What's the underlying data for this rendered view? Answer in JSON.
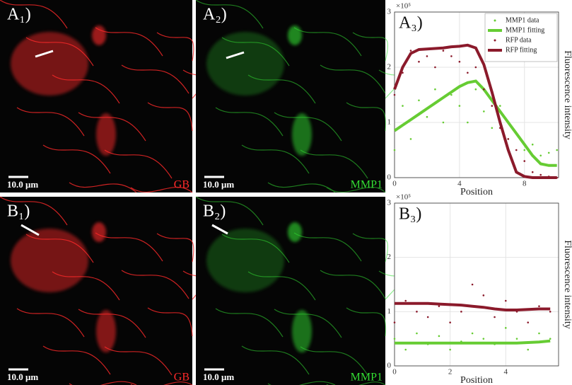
{
  "panels": [
    {
      "label": "A₁)",
      "scale_bar": "10.0 μm",
      "channel": "GB",
      "color": "#ff2a2a"
    },
    {
      "label": "A₂)",
      "scale_bar": "10.0 μm",
      "channel": "MMP1",
      "color": "#33dd33"
    },
    {
      "label": "B₁)",
      "scale_bar": "10.0 μm",
      "channel": "GB",
      "color": "#ff2a2a"
    },
    {
      "label": "B₂)",
      "scale_bar": "10.0 μm",
      "channel": "MMP1",
      "color": "#33dd33"
    }
  ],
  "chart_data": [
    {
      "type": "line",
      "title": "A₃)",
      "exponent": "×10⁵",
      "x_label": "Position",
      "y_label": "Fluorescence intensity",
      "xlim": [
        0,
        10.1
      ],
      "xticks": [
        0,
        4,
        8
      ],
      "ylim": [
        0,
        3
      ],
      "yticks": [
        0,
        1,
        2,
        3
      ],
      "grid": true,
      "legend": "upper right",
      "series": [
        {
          "name": "MMP1 data",
          "color": "#66cc33",
          "style": "markers",
          "x": [
            0,
            0.5,
            1,
            1.5,
            2,
            2.5,
            3,
            3.5,
            4,
            4.5,
            5,
            5.5,
            6,
            6.5,
            7,
            7.5,
            8,
            8.5,
            9,
            9.5,
            10
          ],
          "values": [
            0.5,
            1.3,
            0.7,
            1.4,
            1.1,
            1.6,
            1.0,
            1.5,
            1.3,
            1.0,
            1.6,
            1.2,
            0.9,
            1.3,
            0.7,
            0.8,
            0.5,
            0.6,
            0.4,
            0.45,
            0.5
          ]
        },
        {
          "name": "MMP1 fitting",
          "color": "#66cc33",
          "style": "line",
          "x": [
            0,
            0.5,
            1,
            1.5,
            2,
            2.5,
            3,
            3.5,
            4,
            4.5,
            5,
            5.5,
            6,
            6.5,
            7,
            7.5,
            8,
            8.5,
            9,
            9.5,
            10
          ],
          "values": [
            0.85,
            0.95,
            1.05,
            1.15,
            1.25,
            1.35,
            1.45,
            1.55,
            1.65,
            1.72,
            1.75,
            1.6,
            1.4,
            1.2,
            1.0,
            0.8,
            0.6,
            0.4,
            0.25,
            0.22,
            0.22
          ]
        },
        {
          "name": "RFP data",
          "color": "#8b1a2b",
          "style": "markers",
          "x": [
            0,
            0.5,
            1,
            1.5,
            2,
            2.5,
            3,
            3.5,
            4,
            4.5,
            5,
            5.5,
            6,
            6.5,
            7,
            7.5,
            8,
            8.5,
            9,
            9.5,
            10
          ],
          "values": [
            1.5,
            1.9,
            2.3,
            2.1,
            2.2,
            2.0,
            2.3,
            2.2,
            2.1,
            1.9,
            2.0,
            1.6,
            1.3,
            0.9,
            0.7,
            0.5,
            0.3,
            0.1,
            0.05,
            0.02,
            0.0
          ]
        },
        {
          "name": "RFP fitting",
          "color": "#8b1a2b",
          "style": "line",
          "x": [
            0,
            0.5,
            1,
            1.5,
            2,
            2.5,
            3,
            3.5,
            4,
            4.5,
            5,
            5.5,
            6,
            6.5,
            7,
            7.5,
            8,
            8.5,
            9,
            9.5,
            10
          ],
          "values": [
            1.6,
            2.0,
            2.25,
            2.32,
            2.33,
            2.34,
            2.35,
            2.37,
            2.38,
            2.4,
            2.35,
            2.05,
            1.55,
            1.0,
            0.5,
            0.1,
            0.02,
            0.0,
            0.0,
            0.0,
            0.0
          ]
        }
      ]
    },
    {
      "type": "line",
      "title": "B₃)",
      "exponent": "×10⁵",
      "x_label": "Position",
      "y_label": "Fluorescence intensity",
      "xlim": [
        0,
        5.9
      ],
      "xticks": [
        0,
        2,
        4
      ],
      "ylim": [
        0,
        3
      ],
      "yticks": [
        0,
        1,
        2,
        3
      ],
      "grid": true,
      "series": [
        {
          "name": "MMP1 data",
          "color": "#66cc33",
          "style": "markers",
          "x": [
            0,
            0.4,
            0.8,
            1.2,
            1.6,
            2,
            2.4,
            2.8,
            3.2,
            3.6,
            4,
            4.4,
            4.8,
            5.2,
            5.6
          ],
          "values": [
            0.5,
            0.3,
            0.6,
            0.4,
            0.55,
            0.3,
            0.45,
            0.6,
            0.5,
            0.4,
            0.7,
            0.5,
            0.3,
            0.6,
            0.5
          ]
        },
        {
          "name": "MMP1 fitting",
          "color": "#66cc33",
          "style": "line",
          "x": [
            0,
            0.4,
            0.8,
            1.2,
            1.6,
            2,
            2.4,
            2.8,
            3.2,
            3.6,
            4,
            4.4,
            4.8,
            5.2,
            5.6
          ],
          "values": [
            0.42,
            0.42,
            0.42,
            0.42,
            0.42,
            0.42,
            0.42,
            0.42,
            0.42,
            0.42,
            0.42,
            0.42,
            0.43,
            0.44,
            0.46
          ]
        },
        {
          "name": "RFP data",
          "color": "#8b1a2b",
          "style": "markers",
          "x": [
            0,
            0.4,
            0.8,
            1.2,
            1.6,
            2,
            2.4,
            2.8,
            3.2,
            3.6,
            4,
            4.4,
            4.8,
            5.2,
            5.6
          ],
          "values": [
            0.8,
            1.2,
            1.0,
            0.9,
            1.1,
            0.8,
            1.0,
            1.5,
            1.3,
            0.9,
            1.2,
            1.0,
            0.8,
            1.1,
            1.0
          ]
        },
        {
          "name": "RFP fitting",
          "color": "#8b1a2b",
          "style": "line",
          "x": [
            0,
            0.4,
            0.8,
            1.2,
            1.6,
            2,
            2.4,
            2.8,
            3.2,
            3.6,
            4,
            4.4,
            4.8,
            5.2,
            5.6
          ],
          "values": [
            1.15,
            1.15,
            1.15,
            1.15,
            1.14,
            1.13,
            1.12,
            1.1,
            1.08,
            1.05,
            1.03,
            1.03,
            1.04,
            1.05,
            1.05
          ]
        }
      ]
    }
  ]
}
